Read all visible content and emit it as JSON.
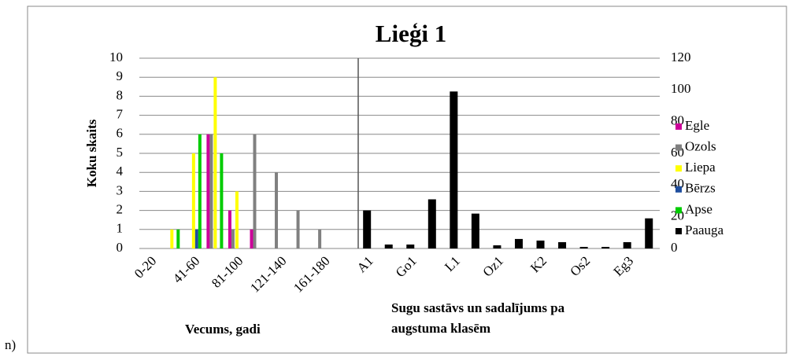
{
  "caption": "n)",
  "chart_data": {
    "type": "bar",
    "title": "Lieģi 1",
    "ylabel": "Koku skaits",
    "xlabel": "Vecums, gadi",
    "xlabel_right": [
      "Sugu sastāvs un sadalījums  pa",
      "augstuma klasēm"
    ],
    "categories": [
      "0-20",
      null,
      "41-60",
      null,
      "81-100",
      null,
      "121-140",
      null,
      "161-180",
      null,
      "A1",
      null,
      "Go1",
      null,
      "L1",
      null,
      "Oz1",
      null,
      "K2",
      null,
      "Os2",
      null,
      "Eg3",
      null
    ],
    "series": [
      {
        "name": "Egle",
        "color": "#cc0099",
        "values": [
          null,
          null,
          null,
          6,
          2,
          1,
          null,
          null,
          null,
          null,
          null,
          null,
          null,
          null,
          null,
          null,
          null,
          null,
          null,
          null,
          null,
          null,
          null,
          null
        ]
      },
      {
        "name": "Ozols",
        "color": "#808080",
        "values": [
          null,
          null,
          null,
          6,
          1,
          6,
          4,
          2,
          1,
          null,
          null,
          null,
          null,
          null,
          null,
          null,
          null,
          null,
          null,
          null,
          null,
          null,
          null,
          null
        ]
      },
      {
        "name": "Liepa",
        "color": "#ffff00",
        "values": [
          null,
          1,
          5,
          9,
          3,
          null,
          null,
          null,
          null,
          null,
          null,
          null,
          null,
          null,
          null,
          null,
          null,
          null,
          null,
          null,
          null,
          null,
          null,
          null
        ]
      },
      {
        "name": "Bērzs",
        "color": "#1f4e9e",
        "values": [
          null,
          null,
          1,
          null,
          null,
          null,
          null,
          null,
          null,
          null,
          null,
          null,
          null,
          null,
          null,
          null,
          null,
          null,
          null,
          null,
          null,
          null,
          null,
          null
        ]
      },
      {
        "name": "Apse",
        "color": "#00cc00",
        "values": [
          null,
          1,
          6,
          5,
          null,
          null,
          null,
          null,
          null,
          null,
          null,
          null,
          null,
          null,
          null,
          null,
          null,
          null,
          null,
          null,
          null,
          null,
          null,
          null
        ]
      },
      {
        "name": "Paauga",
        "color": "#000000",
        "axis": "y2",
        "values": [
          null,
          null,
          null,
          null,
          null,
          null,
          null,
          null,
          null,
          null,
          24,
          2.5,
          2.5,
          31,
          99,
          22,
          2,
          6,
          5,
          4,
          1,
          1,
          4,
          19
        ]
      }
    ],
    "ylim": [
      0,
      10
    ],
    "yticks": [
      0,
      1,
      2,
      3,
      4,
      5,
      6,
      7,
      8,
      9,
      10
    ],
    "y2lim": [
      0,
      120
    ],
    "y2ticks": [
      0,
      20,
      40,
      60,
      80,
      100,
      120
    ],
    "grid": true,
    "legend": "right"
  }
}
